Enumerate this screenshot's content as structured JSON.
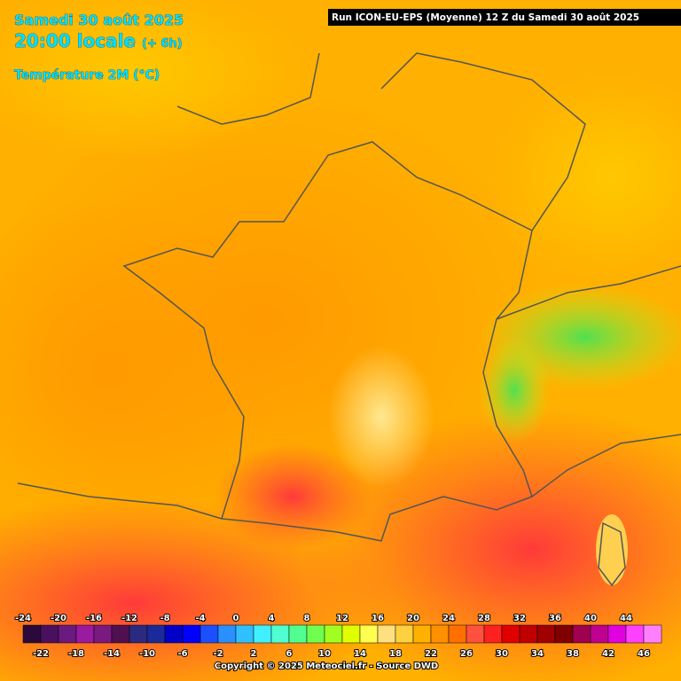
{
  "header": {
    "date": "Samedi 30 août 2025",
    "time": "20:00 locale",
    "lead": "(+ 6h)",
    "variable": "Température 2M (°C)"
  },
  "run_info": "Run ICON-EU-EPS (Moyenne) 12 Z du Samedi 30 août 2025",
  "legend": {
    "ticks": [
      -24,
      -22,
      -20,
      -18,
      -16,
      -14,
      -12,
      -10,
      -8,
      -6,
      -4,
      -2,
      0,
      2,
      4,
      6,
      8,
      10,
      12,
      14,
      16,
      18,
      20,
      22,
      24,
      26,
      28,
      30,
      32,
      34,
      36,
      38,
      40,
      42,
      44,
      46
    ],
    "colors": [
      "#2a0a3a",
      "#4a1060",
      "#6a1a80",
      "#9a1aa0",
      "#7a1a80",
      "#501050",
      "#2a2a80",
      "#1a2a9a",
      "#0000c8",
      "#0000ff",
      "#1a50ff",
      "#2a90ff",
      "#30c0ff",
      "#40f0ff",
      "#50ffd0",
      "#50ff90",
      "#70ff50",
      "#a0ff20",
      "#e0ff00",
      "#ffff50",
      "#ffe080",
      "#ffd040",
      "#ffb000",
      "#ff9000",
      "#ff7000",
      "#ff5040",
      "#ff2020",
      "#e00000",
      "#c00000",
      "#a00000",
      "#800000",
      "#a00050",
      "#c00090",
      "#e000e0",
      "#ff40ff",
      "#ff80ff"
    ]
  },
  "copyright": "Copyright © 2025 Meteociel.fr - Source DWD"
}
